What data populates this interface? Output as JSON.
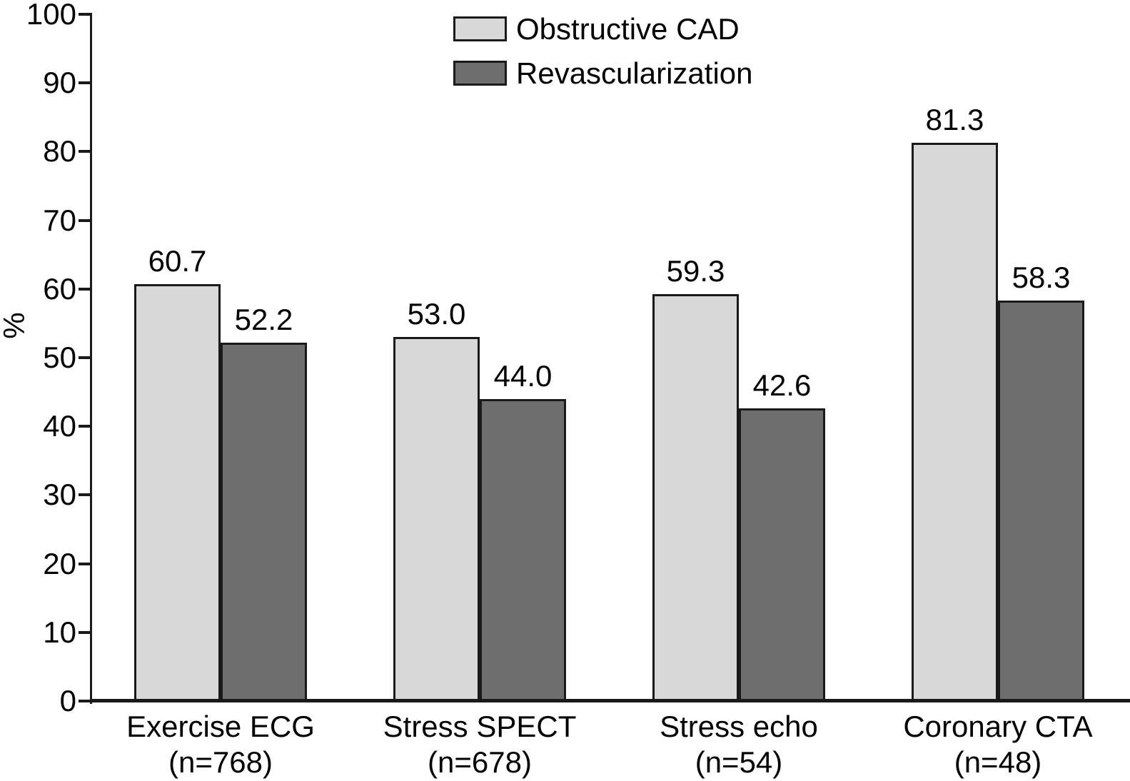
{
  "chart_data": {
    "type": "bar",
    "title": "",
    "xlabel": "",
    "ylabel": "%",
    "ylim": [
      0,
      100
    ],
    "yticks": [
      0,
      10,
      20,
      30,
      40,
      50,
      60,
      70,
      80,
      90,
      100
    ],
    "grid": false,
    "legend_position": "top-center",
    "categories": [
      {
        "name": "Exercise ECG",
        "n_label": "(n=768)"
      },
      {
        "name": "Stress SPECT",
        "n_label": "(n=678)"
      },
      {
        "name": "Stress echo",
        "n_label": "(n=54)"
      },
      {
        "name": "Coronary CTA",
        "n_label": "(n=48)"
      }
    ],
    "series": [
      {
        "name": "Obstructive CAD",
        "color": "#d8d8d8",
        "values": [
          60.7,
          53.0,
          59.3,
          81.3
        ],
        "value_labels": [
          "60.7",
          "53.0",
          "59.3",
          "81.3"
        ]
      },
      {
        "name": "Revascularization",
        "color": "#6e6e6e",
        "values": [
          52.2,
          44.0,
          42.6,
          58.3
        ],
        "value_labels": [
          "52.2",
          "44.0",
          "42.6",
          "58.3"
        ]
      }
    ]
  },
  "colors": {
    "background": "#ffffff",
    "axis": "#1a1a1a",
    "bar_border": "#1a1a1a",
    "text": "#000000"
  }
}
